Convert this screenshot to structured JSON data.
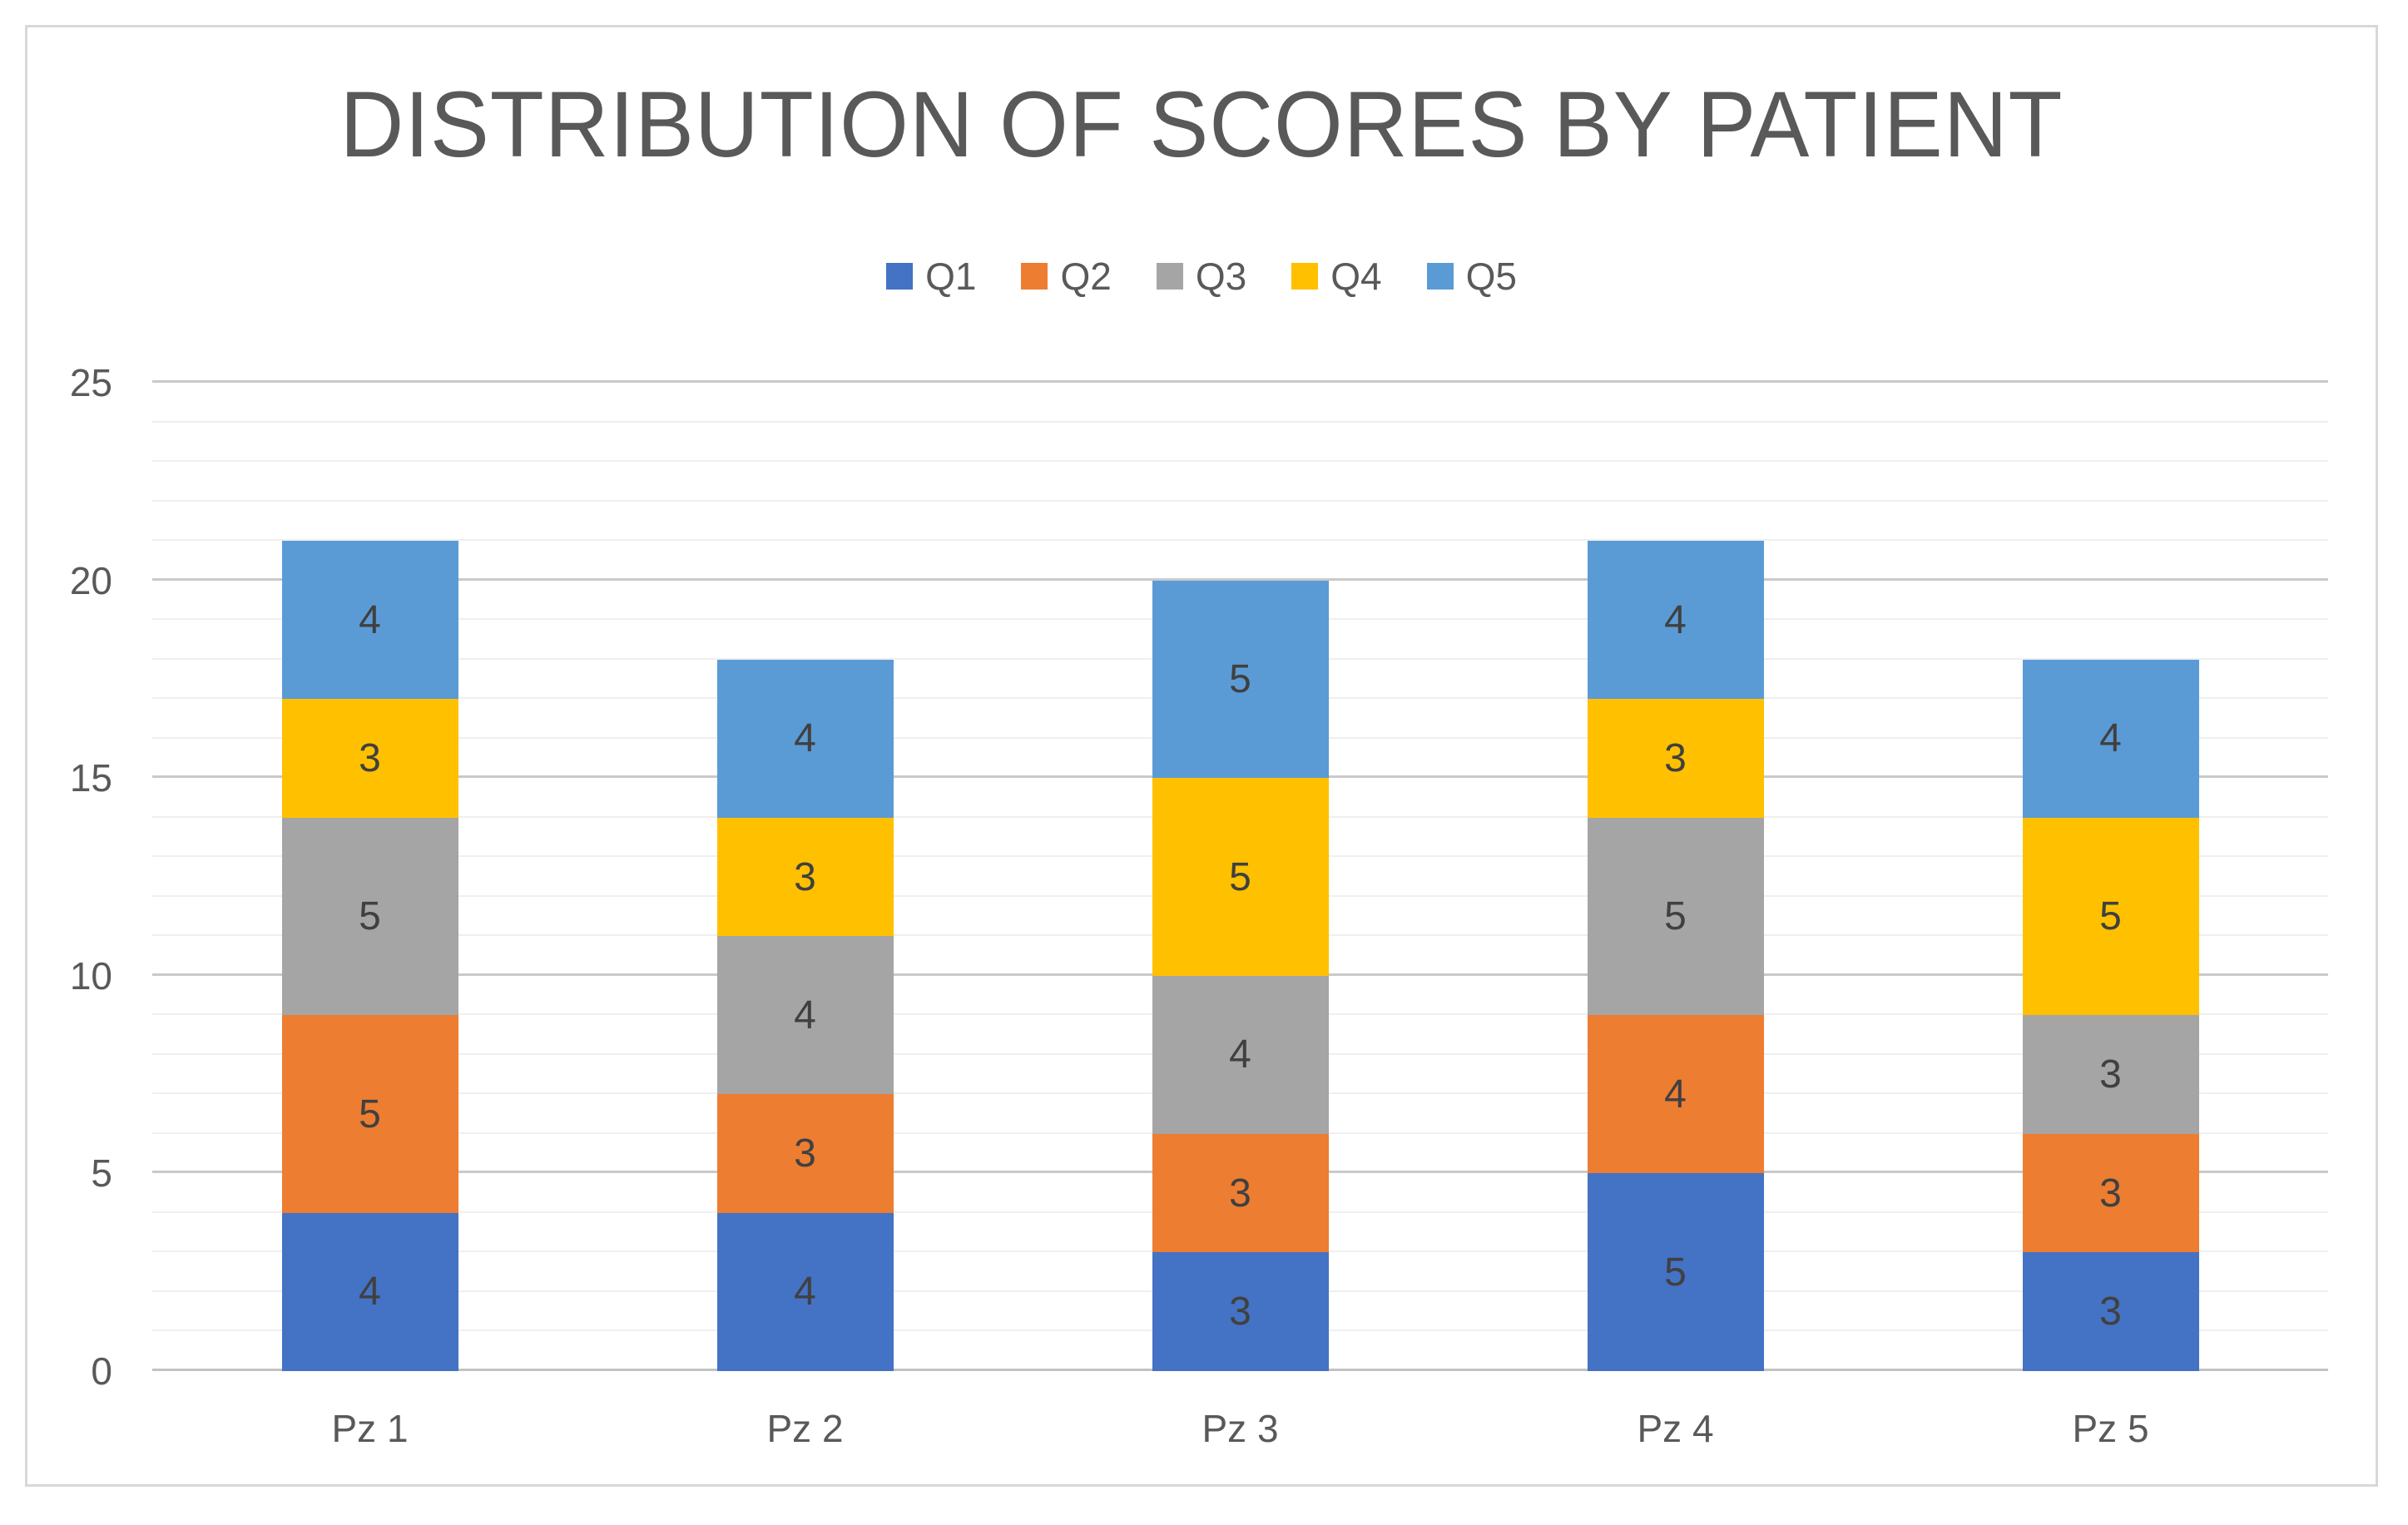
{
  "chart_data": {
    "type": "bar",
    "stacked": true,
    "title": "DISTRIBUTION OF SCORES BY PATIENT",
    "title_color": "#595959",
    "categories": [
      "Pz 1",
      "Pz 2",
      "Pz 3",
      "Pz 4",
      "Pz 5"
    ],
    "series": [
      {
        "name": "Q1",
        "color": "#4472C4",
        "values": [
          4,
          4,
          3,
          5,
          3
        ]
      },
      {
        "name": "Q2",
        "color": "#ED7D31",
        "values": [
          5,
          3,
          3,
          4,
          3
        ]
      },
      {
        "name": "Q3",
        "color": "#A5A5A5",
        "values": [
          5,
          4,
          4,
          5,
          3
        ]
      },
      {
        "name": "Q4",
        "color": "#FFC000",
        "values": [
          3,
          3,
          5,
          3,
          5
        ]
      },
      {
        "name": "Q5",
        "color": "#5B9BD5",
        "values": [
          4,
          4,
          5,
          4,
          4
        ]
      }
    ],
    "data_labels": true,
    "xlabel": "",
    "ylabel": "",
    "y_axis": {
      "min": 0,
      "max": 25,
      "major_step": 5,
      "minor_step": 1,
      "tick_labels": [
        "0",
        "5",
        "10",
        "15",
        "20",
        "25"
      ]
    },
    "legend_position": "top",
    "grid": "horizontal-major-and-minor"
  }
}
